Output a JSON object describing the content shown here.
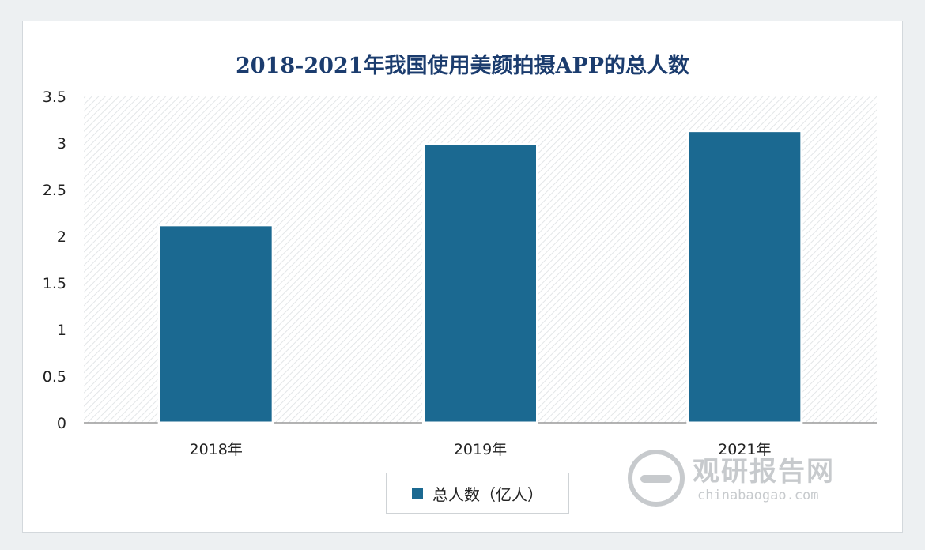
{
  "chart_data": {
    "type": "bar",
    "title": "2018-2021年我国使用美颜拍摄APP的总人数",
    "categories": [
      "2018年",
      "2019年",
      "2021年"
    ],
    "series": [
      {
        "name": "总人数（亿人）",
        "values": [
          2.12,
          2.99,
          3.13
        ]
      }
    ],
    "yticks": [
      "0",
      "0.5",
      "1",
      "1.5",
      "2",
      "2.5",
      "3",
      "3.5"
    ],
    "ylim": [
      0,
      3.5
    ],
    "bar_color": "#1b6991",
    "legend_position": "bottom",
    "background_pattern": "diagonal-hatch"
  },
  "watermark": {
    "name": "观研报告网",
    "url": "chinabaogao.com"
  }
}
